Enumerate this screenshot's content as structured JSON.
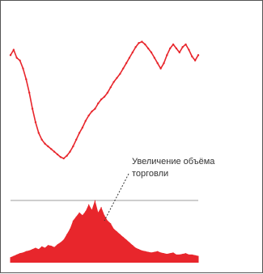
{
  "colors": {
    "price_line": "#e8262c",
    "volume_fill": "#e8262c",
    "divider": "#bdbdbd",
    "frame": "#555555",
    "annotation_text": "#333333"
  },
  "annotation": {
    "line1": "Увеличение объёма",
    "line2": "торговли"
  },
  "chart_data": [
    {
      "type": "line",
      "title": "",
      "xlabel": "",
      "ylabel": "",
      "grid": false,
      "ylim": [
        0,
        100
      ],
      "x": [
        0,
        4,
        8,
        12,
        16,
        20,
        24,
        28,
        32,
        36,
        40,
        44,
        48,
        52,
        56,
        60,
        64,
        68,
        72,
        76,
        80,
        84,
        88,
        92,
        96,
        100,
        104,
        108,
        112,
        116,
        120,
        124,
        128,
        132,
        136,
        140,
        144,
        148,
        152,
        156,
        160,
        164,
        168,
        172,
        176,
        180,
        184,
        188,
        192,
        196,
        200,
        204,
        208,
        212,
        216,
        220,
        224,
        228,
        232,
        236,
        240
      ],
      "series": [
        {
          "values": [
            80,
            84,
            78,
            76,
            70,
            62,
            52,
            40,
            30,
            22,
            17,
            14,
            12,
            10,
            8,
            6,
            4,
            3,
            5,
            8,
            12,
            17,
            22,
            26,
            31,
            35,
            38,
            40,
            44,
            47,
            49,
            52,
            56,
            60,
            63,
            66,
            70,
            74,
            78,
            82,
            86,
            89,
            90,
            88,
            85,
            82,
            78,
            74,
            70,
            74,
            80,
            85,
            88,
            85,
            82,
            86,
            88,
            84,
            79,
            76,
            80
          ]
        }
      ]
    },
    {
      "type": "area",
      "title": "",
      "xlabel": "",
      "ylabel": "",
      "grid": false,
      "ylim": [
        0,
        100
      ],
      "x": [
        0,
        4,
        8,
        12,
        16,
        20,
        24,
        28,
        32,
        36,
        40,
        44,
        48,
        52,
        56,
        60,
        64,
        68,
        72,
        76,
        80,
        84,
        88,
        92,
        96,
        100,
        104,
        108,
        112,
        116,
        120,
        124,
        128,
        132,
        136,
        140,
        144,
        148,
        152,
        156,
        160,
        164,
        168,
        172,
        176,
        180,
        184,
        188,
        192,
        196,
        200,
        204,
        208,
        212,
        216,
        220,
        224,
        228,
        232,
        236,
        240
      ],
      "series": [
        {
          "values": [
            8,
            10,
            12,
            14,
            15,
            17,
            18,
            20,
            22,
            20,
            24,
            22,
            26,
            25,
            23,
            27,
            30,
            34,
            42,
            50,
            62,
            68,
            74,
            70,
            76,
            86,
            78,
            92,
            74,
            82,
            70,
            62,
            58,
            50,
            46,
            42,
            38,
            34,
            30,
            26,
            22,
            20,
            18,
            17,
            16,
            15,
            16,
            17,
            15,
            14,
            13,
            14,
            15,
            12,
            12,
            13,
            14,
            12,
            12,
            11,
            10
          ]
        }
      ]
    }
  ]
}
